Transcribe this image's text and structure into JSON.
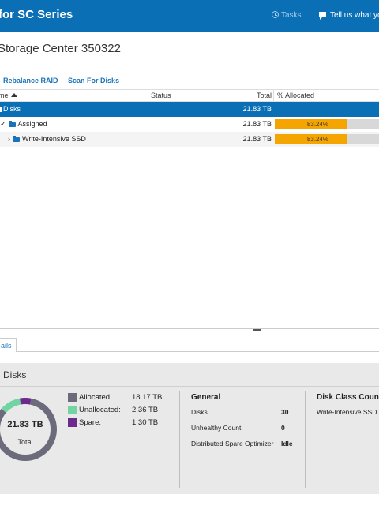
{
  "header": {
    "app_title": "for SC Series",
    "tasks_label": "Tasks",
    "feedback_label": "Tell us what yo"
  },
  "page": {
    "title": "Storage Center 350322"
  },
  "toolbar": {
    "actions": [
      "Rebalance RAID",
      "Scan For Disks"
    ]
  },
  "grid": {
    "columns": {
      "name": "me",
      "status": "Status",
      "total": "Total",
      "allocated": "% Allocated"
    },
    "rows": [
      {
        "name": "Disks",
        "status": "",
        "total": "21.83 TB",
        "allocated_pct": "",
        "selected": true
      },
      {
        "name": "Assigned",
        "status": "",
        "total": "21.83 TB",
        "allocated_pct": "83.24%",
        "allocated_fraction": 0.8324
      },
      {
        "name": "Write-Intensive SSD",
        "status": "",
        "total": "21.83 TB",
        "allocated_pct": "83.24%",
        "allocated_fraction": 0.8324
      }
    ]
  },
  "details_tab": {
    "label": "ails"
  },
  "summary": {
    "title": "Disks",
    "donut": {
      "value": "21.83 TB",
      "label": "Total",
      "colors": {
        "allocated": "#6b6b7b",
        "unallocated": "#72d3a3",
        "spare": "#6a2b8a"
      },
      "allocated_tb": 18.17,
      "unallocated_tb": 2.36,
      "spare_tb": 1.3
    },
    "legend": [
      {
        "label": "Allocated:",
        "value": "18.17 TB",
        "color": "#6b6b7b"
      },
      {
        "label": "Unallocated:",
        "value": "2.36 TB",
        "color": "#72d3a3"
      },
      {
        "label": "Spare:",
        "value": "1.30 TB",
        "color": "#6a2b8a"
      }
    ],
    "general": {
      "title": "General",
      "items": [
        {
          "key": "Disks",
          "value": "30"
        },
        {
          "key": "Unhealthy Count",
          "value": "0"
        },
        {
          "key": "Distributed Spare Optimizer",
          "value": "Idle"
        }
      ]
    },
    "disk_class_counts": {
      "title": "Disk Class Counts",
      "items": [
        "Write-Intensive SSD"
      ]
    }
  }
}
